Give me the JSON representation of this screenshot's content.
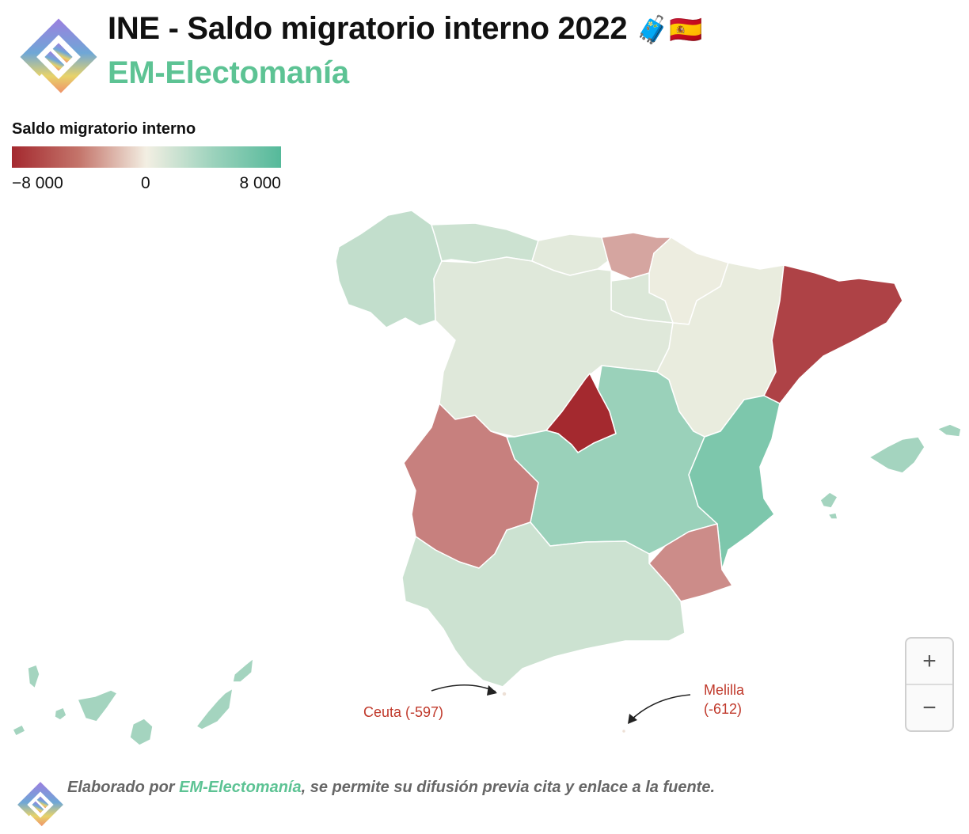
{
  "header": {
    "title": "INE - Saldo migratorio interno 2022",
    "title_emoji": "🧳🇪🇸",
    "subtitle": "EM-Electomanía"
  },
  "legend": {
    "title": "Saldo migratorio interno",
    "ticks": [
      "−8 000",
      "0",
      "8 000"
    ],
    "scale_min": -8000,
    "scale_max": 8000,
    "colors": {
      "negative": "#a4292f",
      "neutral": "#f3efe3",
      "positive": "#55b99a"
    }
  },
  "map_data": {
    "regions": [
      {
        "name": "Galicia",
        "value": 2500
      },
      {
        "name": "Asturias",
        "value": 2000
      },
      {
        "name": "Cantabria",
        "value": 800
      },
      {
        "name": "País Vasco",
        "value": -3000
      },
      {
        "name": "Navarra",
        "value": 300
      },
      {
        "name": "La Rioja",
        "value": 1200
      },
      {
        "name": "Castilla y León",
        "value": 1000
      },
      {
        "name": "Aragón",
        "value": 500
      },
      {
        "name": "Cataluña",
        "value": -7000
      },
      {
        "name": "Comunidad de Madrid",
        "value": -8500
      },
      {
        "name": "Castilla-La Mancha",
        "value": 4500
      },
      {
        "name": "Comunidad Valenciana",
        "value": 6000
      },
      {
        "name": "Illes Balears",
        "value": 4000
      },
      {
        "name": "Extremadura",
        "value": -4500
      },
      {
        "name": "Andalucía",
        "value": 2000
      },
      {
        "name": "Región de Murcia",
        "value": -4000
      },
      {
        "name": "Canarias",
        "value": 4000
      },
      {
        "name": "Ceuta",
        "value": -597
      },
      {
        "name": "Melilla",
        "value": -612
      }
    ]
  },
  "callouts": {
    "ceuta": "Ceuta (-597)",
    "melilla_name": "Melilla",
    "melilla_value": "(-612)"
  },
  "controls": {
    "zoom_in": "+",
    "zoom_out": "−"
  },
  "footer": {
    "prefix": "Elaborado por ",
    "brand": "EM-Electomanía",
    "suffix": ", se permite su difusión previa cita y enlace a la fuente."
  }
}
